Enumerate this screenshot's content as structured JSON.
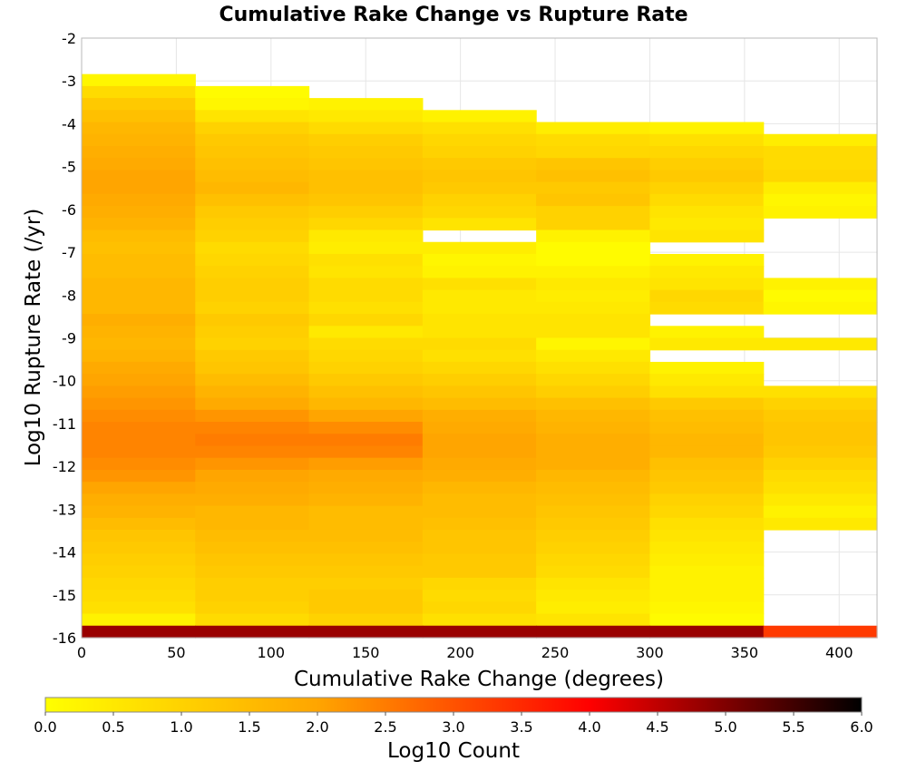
{
  "chart_data": {
    "type": "heatmap",
    "title": "Cumulative Rake Change vs Rupture Rate",
    "xlabel": "Cumulative Rake Change (degrees)",
    "ylabel": "Log10 Rupture Rate (/yr)",
    "xlim": [
      0,
      420
    ],
    "ylim": [
      -16,
      -2
    ],
    "x_ticks": [
      "0",
      "50",
      "100",
      "150",
      "200",
      "250",
      "300",
      "350",
      "400"
    ],
    "y_ticks": [
      "-2",
      "-3",
      "-4",
      "-5",
      "-6",
      "-7",
      "-8",
      "-9",
      "-10",
      "-11",
      "-12",
      "-13",
      "-14",
      "-15",
      "-16"
    ],
    "grid": true,
    "x_bin_width": 60,
    "y_bin_height": 0.28,
    "x_bin_starts": [
      0,
      60,
      120,
      180,
      240,
      300,
      360
    ],
    "y_bin_starts": [
      -3.12,
      -3.4,
      -3.68,
      -3.96,
      -4.24,
      -4.52,
      -4.8,
      -5.08,
      -5.36,
      -5.64,
      -5.92,
      -6.2,
      -6.48,
      -6.76,
      -7.04,
      -7.32,
      -7.6,
      -7.88,
      -8.16,
      -8.44,
      -8.72,
      -9.0,
      -9.28,
      -9.56,
      -9.84,
      -10.12,
      -10.4,
      -10.68,
      -10.96,
      -11.24,
      -11.52,
      -11.8,
      -12.08,
      -12.36,
      -12.64,
      -12.92,
      -13.2,
      -13.48,
      -13.76,
      -14.04,
      -14.32,
      -14.6,
      -14.88,
      -15.16,
      -15.44,
      -15.72,
      -16.0
    ],
    "z": [
      [
        0.2,
        null,
        null,
        null,
        null,
        null,
        null
      ],
      [
        0.8,
        0.1,
        null,
        null,
        null,
        null,
        null
      ],
      [
        1.2,
        0.2,
        0.3,
        null,
        null,
        null,
        null
      ],
      [
        1.4,
        0.6,
        0.5,
        0.3,
        null,
        null,
        null
      ],
      [
        1.6,
        1.0,
        0.8,
        0.7,
        0.4,
        0.3,
        null
      ],
      [
        1.7,
        1.2,
        1.1,
        0.9,
        0.8,
        0.7,
        0.4
      ],
      [
        1.8,
        1.3,
        1.2,
        1.0,
        0.9,
        0.9,
        0.8
      ],
      [
        1.9,
        1.4,
        1.3,
        1.2,
        1.3,
        1.1,
        0.8
      ],
      [
        2.0,
        1.5,
        1.4,
        1.3,
        1.4,
        1.2,
        0.9
      ],
      [
        2.0,
        1.6,
        1.4,
        1.2,
        1.2,
        1.0,
        0.4
      ],
      [
        1.9,
        1.4,
        1.3,
        1.0,
        1.3,
        0.8,
        0.2
      ],
      [
        1.8,
        1.2,
        1.1,
        0.9,
        1.0,
        0.6,
        0.3
      ],
      [
        1.7,
        1.1,
        0.9,
        0.6,
        1.0,
        0.5,
        null
      ],
      [
        1.5,
        1.0,
        0.5,
        null,
        0.3,
        0.6,
        null
      ],
      [
        1.4,
        0.8,
        0.4,
        0.4,
        0.1,
        null,
        null
      ],
      [
        1.5,
        0.9,
        0.7,
        0.2,
        0.1,
        0.3,
        null
      ],
      [
        1.5,
        1.0,
        0.6,
        0.3,
        0.3,
        0.5,
        null
      ],
      [
        1.6,
        1.1,
        0.8,
        0.7,
        0.5,
        0.6,
        0.3
      ],
      [
        1.6,
        1.1,
        0.8,
        0.5,
        0.4,
        0.9,
        0.1
      ],
      [
        1.6,
        1.0,
        0.7,
        0.5,
        0.5,
        0.8,
        0.2
      ],
      [
        1.8,
        1.2,
        0.9,
        0.6,
        0.6,
        null,
        null
      ],
      [
        1.7,
        1.1,
        0.5,
        0.6,
        0.6,
        0.3,
        null
      ],
      [
        1.6,
        1.0,
        0.8,
        0.8,
        0.2,
        0.5,
        0.5
      ],
      [
        1.7,
        1.2,
        0.9,
        0.7,
        0.5,
        null,
        null
      ],
      [
        1.9,
        1.3,
        1.0,
        0.9,
        0.7,
        0.3,
        null
      ],
      [
        2.0,
        1.5,
        1.2,
        1.1,
        0.9,
        0.5,
        null
      ],
      [
        2.1,
        1.7,
        1.4,
        1.3,
        1.1,
        0.7,
        0.7
      ],
      [
        2.2,
        1.9,
        1.6,
        1.5,
        1.4,
        1.2,
        1.0
      ],
      [
        2.3,
        2.2,
        2.0,
        1.8,
        1.6,
        1.4,
        1.2
      ],
      [
        2.4,
        2.4,
        2.3,
        1.9,
        1.7,
        1.5,
        1.3
      ],
      [
        2.4,
        2.5,
        2.5,
        2.0,
        1.8,
        1.6,
        1.3
      ],
      [
        2.4,
        2.4,
        2.4,
        2.0,
        1.8,
        1.6,
        1.2
      ],
      [
        2.3,
        2.2,
        2.1,
        1.9,
        1.8,
        1.4,
        1.0
      ],
      [
        2.2,
        2.0,
        1.9,
        1.8,
        1.6,
        1.3,
        0.8
      ],
      [
        2.0,
        1.9,
        1.8,
        1.6,
        1.5,
        1.2,
        0.7
      ],
      [
        1.8,
        1.8,
        1.7,
        1.5,
        1.4,
        1.0,
        0.5
      ],
      [
        1.7,
        1.6,
        1.5,
        1.5,
        1.3,
        0.9,
        0.3
      ],
      [
        1.5,
        1.6,
        1.5,
        1.4,
        1.2,
        0.7,
        0.5
      ],
      [
        1.3,
        1.5,
        1.5,
        1.3,
        1.1,
        0.6,
        null
      ],
      [
        1.2,
        1.4,
        1.4,
        1.3,
        1.0,
        0.5,
        null
      ],
      [
        1.1,
        1.3,
        1.3,
        1.2,
        0.9,
        0.4,
        null
      ],
      [
        1.0,
        1.2,
        1.2,
        1.2,
        0.8,
        0.3,
        null
      ],
      [
        0.9,
        1.1,
        1.1,
        0.9,
        0.6,
        0.3,
        null
      ],
      [
        0.8,
        1.1,
        1.2,
        0.8,
        0.5,
        0.3,
        null
      ],
      [
        0.7,
        1.0,
        1.2,
        0.9,
        0.4,
        0.2,
        null
      ],
      [
        0.3,
        0.8,
        1.0,
        0.7,
        0.6,
        0.1,
        null
      ],
      [
        4.8,
        4.8,
        4.8,
        4.8,
        4.8,
        4.8,
        3.3
      ]
    ],
    "colorbar": {
      "label": "Log10 Count",
      "min": 0.0,
      "max": 6.0,
      "ticks": [
        "0.0",
        "0.5",
        "1.0",
        "1.5",
        "2.0",
        "2.5",
        "3.0",
        "3.5",
        "4.0",
        "4.5",
        "5.0",
        "5.5",
        "6.0"
      ],
      "colors": [
        "#ffff00",
        "#ffa500",
        "#ff0000",
        "#000000"
      ]
    }
  }
}
